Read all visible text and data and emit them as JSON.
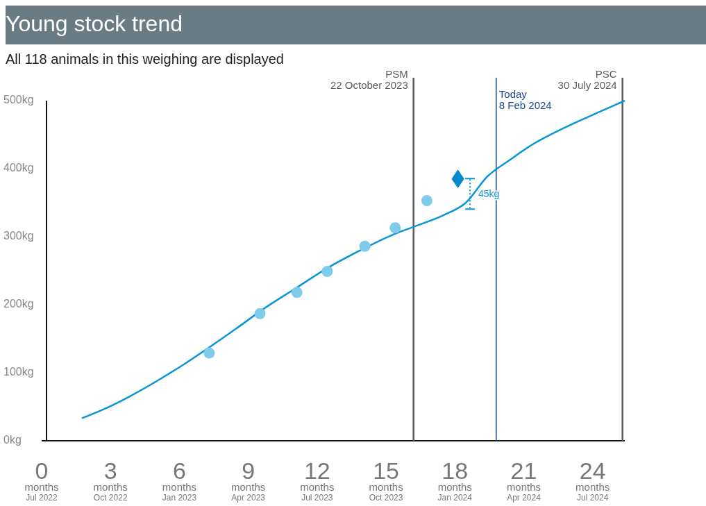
{
  "chart_data": {
    "type": "line",
    "title": "Young stock trend",
    "subtitle": "All 118 animals in this weighing are displayed",
    "xlim": [
      0,
      25.4
    ],
    "ylim": [
      0,
      500
    ],
    "xticks": [
      0,
      3,
      6,
      9,
      12,
      15,
      18,
      21,
      24
    ],
    "yticks": [
      {
        "value": 0,
        "label": "0kg"
      },
      {
        "value": 100,
        "label": "100kg"
      },
      {
        "value": 200,
        "label": "200kg"
      },
      {
        "value": 300,
        "label": "300kg"
      },
      {
        "value": 400,
        "label": "400kg"
      },
      {
        "value": 500,
        "label": "500kg"
      }
    ],
    "grid": false,
    "series": [
      {
        "color": "#0a96d6",
        "marker": "none",
        "x": [
          1.75,
          2.82,
          3.88,
          5.03,
          6.18,
          7.33,
          8.48,
          9.63,
          11.06,
          12.5,
          13.94,
          15.37,
          16.24,
          17.53,
          18.48,
          19.4,
          20.4,
          21.4,
          22.4,
          23.4,
          24.4,
          25.4
        ],
        "values": [
          33,
          48,
          66,
          88,
          112,
          138,
          165,
          193,
          224,
          255,
          281,
          304,
          315,
          332,
          350,
          388,
          413,
          436,
          454,
          470,
          485,
          500
        ]
      },
      {
        "type": "scatter",
        "color": "#7ecbeb",
        "marker": "circle",
        "x": [
          7.3,
          9.51,
          11.12,
          12.44,
          14.08,
          15.4,
          16.78
        ],
        "values": [
          129,
          187,
          218,
          249,
          286,
          313,
          353
        ]
      },
      {
        "type": "scatter",
        "color": "#0288d1",
        "marker": "diamond",
        "x": [
          18.13
        ],
        "values": [
          385
        ]
      }
    ],
    "ref_lines": [
      {
        "axis": "x",
        "value": 16.2,
        "label": "PSM\n22 October 2023",
        "color": "#555b61"
      },
      {
        "axis": "x",
        "value": 19.8,
        "label": "Today\n8 Feb 2024",
        "color": "#1a4a8a"
      },
      {
        "axis": "x",
        "value": 25.3,
        "label": "PSC\n30 July 2024",
        "color": "#555b61"
      }
    ],
    "annotations": [
      {
        "text": "45kg",
        "x": 18.9,
        "y": 363
      },
      "months$_{Jul 2022}$",
      "months$_{Oct 2022}$",
      "months$_{Jan 2023}$",
      "months$_{Apr 2023}$",
      "months$_{Jul 2023}$",
      "months$_{Oct 2023}$",
      "months$_{Jan 2024}$",
      "months$_{Apr 2024}$",
      "months$_{Jul 2024}$"
    ]
  }
}
